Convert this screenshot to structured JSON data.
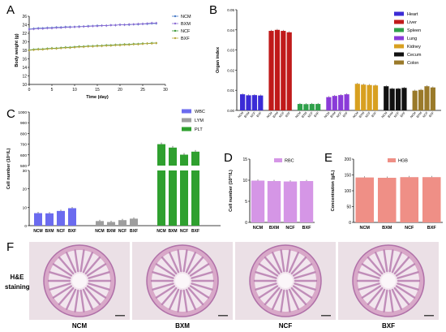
{
  "figure": {
    "panel_labels": [
      "A",
      "B",
      "C",
      "D",
      "E",
      "F"
    ],
    "histology_label_line1": "H&E",
    "histology_label_line2": "staining",
    "histology_groups": [
      "NCM",
      "BXM",
      "NCF",
      "BXF"
    ],
    "colors": {
      "NCM": "#4a7cc7",
      "BXM": "#8a6bd4",
      "NCF": "#3f9a3c",
      "BXF": "#b8a83f",
      "tissue_pink": "#d8a8c8",
      "tissue_dark": "#b070a8",
      "tissue_bg": "#ebe0e6"
    }
  },
  "chart_data": [
    {
      "id": "A",
      "type": "line",
      "xlabel": "Time (day)",
      "ylabel": "Body weight (g)",
      "xlim": [
        0,
        30
      ],
      "ylim": [
        10,
        26
      ],
      "xticks": [
        0,
        5,
        10,
        15,
        20,
        25,
        30
      ],
      "yticks": [
        10,
        12,
        14,
        16,
        18,
        20,
        22,
        24,
        26
      ],
      "legend": "top-right",
      "x": [
        0,
        1,
        2,
        3,
        4,
        5,
        6,
        7,
        8,
        9,
        10,
        11,
        12,
        13,
        14,
        15,
        16,
        17,
        18,
        19,
        20,
        21,
        22,
        23,
        24,
        25,
        26,
        27,
        28
      ],
      "series": [
        {
          "name": "NCM",
          "color": "#4a7cc7",
          "values": [
            23.0,
            23.1,
            23.2,
            23.2,
            23.3,
            23.3,
            23.4,
            23.4,
            23.5,
            23.5,
            23.5,
            23.6,
            23.6,
            23.7,
            23.7,
            23.8,
            23.8,
            23.8,
            23.9,
            23.9,
            24.0,
            24.0,
            24.0,
            24.1,
            24.1,
            24.2,
            24.2,
            24.3,
            24.3
          ]
        },
        {
          "name": "BXM",
          "color": "#8a6bd4",
          "values": [
            22.9,
            23.0,
            23.1,
            23.1,
            23.2,
            23.2,
            23.3,
            23.3,
            23.4,
            23.4,
            23.5,
            23.5,
            23.6,
            23.6,
            23.7,
            23.7,
            23.8,
            23.8,
            23.9,
            23.9,
            24.0,
            24.0,
            24.1,
            24.1,
            24.2,
            24.2,
            24.3,
            24.4,
            24.4
          ]
        },
        {
          "name": "NCF",
          "color": "#3f9a3c",
          "values": [
            18.1,
            18.2,
            18.3,
            18.3,
            18.4,
            18.5,
            18.5,
            18.6,
            18.7,
            18.7,
            18.8,
            18.9,
            18.9,
            19.0,
            19.0,
            19.1,
            19.1,
            19.2,
            19.2,
            19.3,
            19.3,
            19.4,
            19.4,
            19.5,
            19.5,
            19.6,
            19.6,
            19.7,
            19.7
          ]
        },
        {
          "name": "BXF",
          "color": "#b8a83f",
          "values": [
            18.0,
            18.1,
            18.2,
            18.2,
            18.3,
            18.4,
            18.4,
            18.5,
            18.6,
            18.6,
            18.7,
            18.8,
            18.8,
            18.9,
            18.9,
            19.0,
            19.0,
            19.1,
            19.1,
            19.2,
            19.2,
            19.3,
            19.3,
            19.4,
            19.4,
            19.5,
            19.6,
            19.6,
            19.7
          ]
        }
      ]
    },
    {
      "id": "B",
      "type": "bar",
      "ylabel": "Organ index",
      "ylim": [
        0,
        0.05
      ],
      "yticks": [
        0,
        0.01,
        0.02,
        0.03,
        0.04,
        0.05
      ],
      "ytick_labels": [
        "0.00",
        "0.01",
        "0.02",
        "0.03",
        "0.04",
        "0.05"
      ],
      "tick_categories": [
        "NCM",
        "BXM",
        "NCF",
        "BXF"
      ],
      "legend": "top-right",
      "groups": [
        {
          "name": "Heart",
          "color": "#3b2bd6",
          "values": [
            0.008,
            0.0075,
            0.0076,
            0.0074
          ]
        },
        {
          "name": "Liver",
          "color": "#c01a1a",
          "values": [
            0.0395,
            0.04,
            0.0395,
            0.0388
          ]
        },
        {
          "name": "Spleen",
          "color": "#2fa04a",
          "values": [
            0.0032,
            0.0031,
            0.0032,
            0.0032
          ]
        },
        {
          "name": "Lung",
          "color": "#8a3bd8",
          "values": [
            0.0066,
            0.0072,
            0.0076,
            0.008
          ]
        },
        {
          "name": "Kidney",
          "color": "#d8a020",
          "values": [
            0.0132,
            0.0128,
            0.0126,
            0.0124
          ]
        },
        {
          "name": "Cecum",
          "color": "#111111",
          "values": [
            0.012,
            0.0108,
            0.0108,
            0.0112
          ]
        },
        {
          "name": "Colon",
          "color": "#9a7a2a",
          "values": [
            0.0098,
            0.0102,
            0.012,
            0.0114
          ]
        }
      ]
    },
    {
      "id": "C",
      "type": "bar",
      "ylabel": "Cell number (10⁹/L)",
      "ylim": [
        0,
        1000
      ],
      "axis_break": [
        30,
        500
      ],
      "yticks_lower": [
        0,
        10,
        20,
        30
      ],
      "yticks_upper": [
        500,
        600,
        700,
        800,
        900,
        1000
      ],
      "categories": [
        "NCM",
        "BXM",
        "NCF",
        "BXF"
      ],
      "legend": "top-right",
      "groups": [
        {
          "name": "WBC",
          "color": "#6b6bef",
          "values": [
            6.8,
            6.7,
            8.0,
            9.5
          ]
        },
        {
          "name": "LYM",
          "color": "#9e9e9e",
          "values": [
            2.5,
            2.0,
            3.0,
            3.8
          ]
        },
        {
          "name": "PLT",
          "color": "#2fa02f",
          "values": [
            700,
            668,
            602,
            630
          ]
        }
      ]
    },
    {
      "id": "D",
      "type": "bar",
      "ylabel": "Cell number (10¹²/L)",
      "ylim": [
        0,
        15
      ],
      "yticks": [
        0,
        5,
        10,
        15
      ],
      "categories": [
        "NCM",
        "BXM",
        "NCF",
        "BXF"
      ],
      "legend": "top-right",
      "series": [
        {
          "name": "RBC",
          "color": "#d596e6",
          "values": [
            9.9,
            9.8,
            9.7,
            9.8
          ]
        }
      ]
    },
    {
      "id": "E",
      "type": "bar",
      "ylabel": "Concentration (g/L)",
      "ylim": [
        0,
        200
      ],
      "yticks": [
        0,
        50,
        100,
        150,
        200
      ],
      "categories": [
        "NCM",
        "BXM",
        "NCF",
        "BXF"
      ],
      "legend": "top-right",
      "series": [
        {
          "name": "HGB",
          "color": "#ef8f86",
          "values": [
            142,
            141,
            143,
            143
          ]
        }
      ]
    }
  ]
}
